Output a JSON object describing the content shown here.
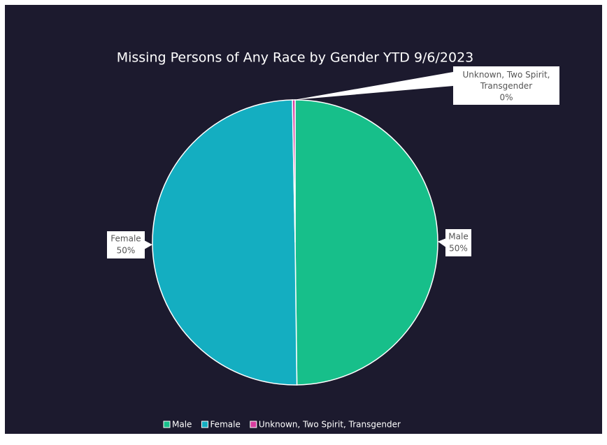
{
  "chart_data": {
    "type": "pie",
    "title": "Missing Persons of Any Race by Gender YTD 9/6/2023",
    "categories": [
      "Male",
      "Female",
      "Unknown, Two Spirit, Transgender"
    ],
    "values": [
      49.8,
      49.9,
      0.3
    ],
    "value_labels": [
      "50%",
      "50%",
      "0%"
    ],
    "colors": [
      "#17bf8a",
      "#14aec1",
      "#d63c9e"
    ],
    "legend": "bottom"
  }
}
